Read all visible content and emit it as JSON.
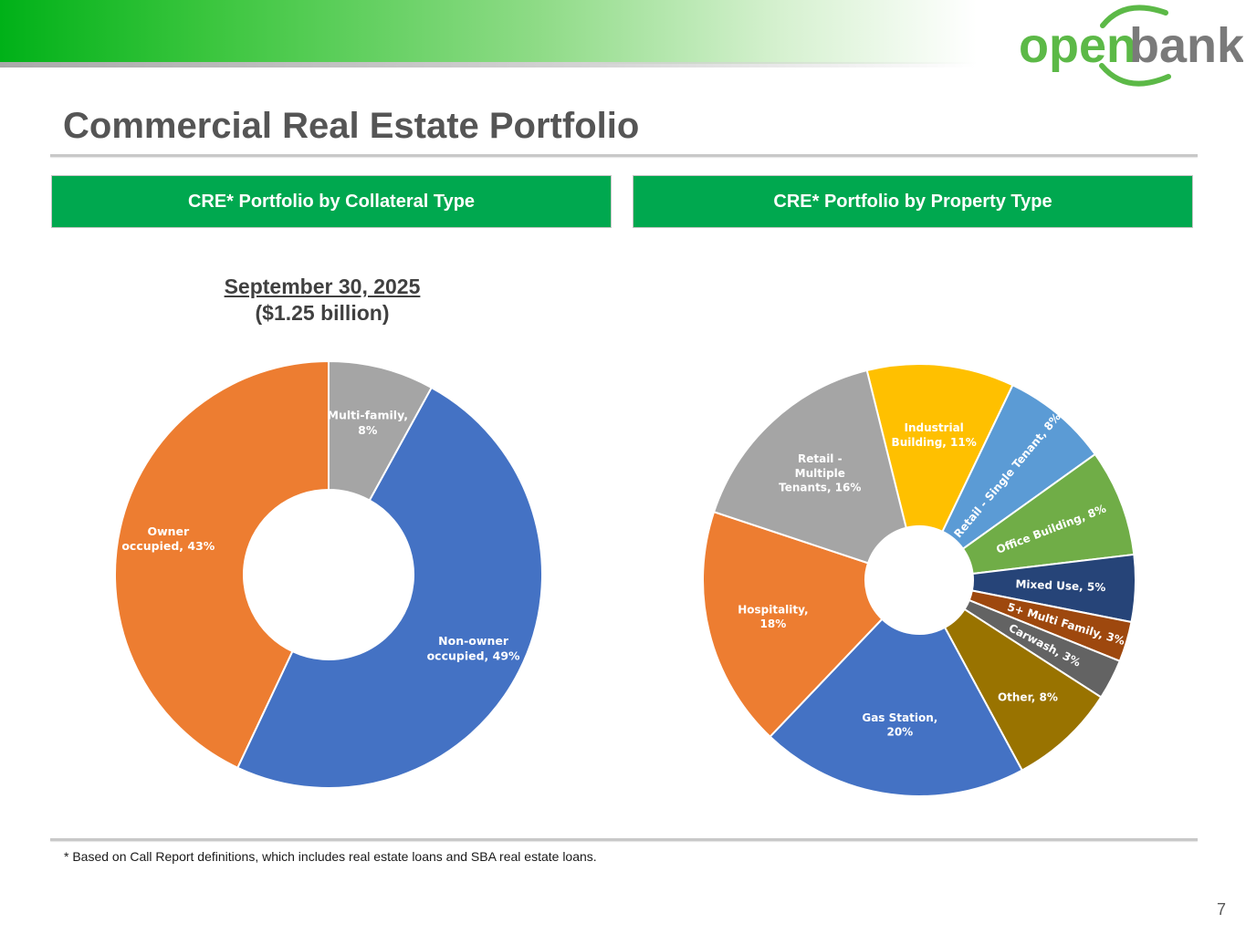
{
  "brand": {
    "logo_text_open": "open",
    "logo_text_bank": "bank",
    "logo_green": "#5cb947",
    "logo_gray": "#7a7a7a",
    "header_green": "#00a84f"
  },
  "page": {
    "title": "Commercial Real Estate Portfolio",
    "footnote": "* Based on Call Report definitions, which includes real estate loans and SBA real estate loans.",
    "page_number": "7"
  },
  "sections": {
    "left_header": "CRE* Portfolio by Collateral Type",
    "right_header": "CRE* Portfolio by Property Type",
    "as_of_date": "September 30, 2025",
    "as_of_amount": "($1.25 billion)"
  },
  "chart_data": [
    {
      "type": "pie",
      "variant": "donut",
      "title": "",
      "start_angle_deg": 90,
      "direction": "counterclockwise",
      "series": [
        {
          "label": "Owner occupied",
          "value": 43,
          "label_text": "Owner occupied, 43%",
          "label_lines": [
            "Owner",
            "occupied, 43%"
          ],
          "color": "#ed7d31",
          "label_color": "#ffffff"
        },
        {
          "label": "Non-owner occupied",
          "value": 49,
          "label_text": "Non-owner occupied, 49%",
          "label_lines": [
            "Non-owner",
            "occupied, 49%"
          ],
          "color": "#4472c4",
          "label_color": "#ffffff"
        },
        {
          "label": "Multi-family",
          "value": 8,
          "label_text": "Multi-family, 8%",
          "label_lines": [
            "Multi-family,",
            "8%"
          ],
          "color": "#a5a5a5",
          "label_color": "#ffffff"
        }
      ]
    },
    {
      "type": "pie",
      "variant": "donut",
      "title": "",
      "start_angle_deg": 104,
      "direction": "clockwise",
      "series": [
        {
          "label": "Industrial Building",
          "value": 11,
          "label_text": "Industrial Building, 11%",
          "label_lines": [
            "Industrial",
            "Building, 11%"
          ],
          "color": "#ffc000",
          "label_color": "#ffffff"
        },
        {
          "label": "Retail - Single Tenant",
          "value": 8,
          "label_text": "Retail - Single Tenant, 8%",
          "label_lines": [
            "Retail - Single Tenant, 8%"
          ],
          "color": "#5b9bd5",
          "label_color": "#ffffff",
          "rotated": true
        },
        {
          "label": "Office Building",
          "value": 8,
          "label_text": "Office Building, 8%",
          "label_lines": [
            "Office Building, 8%"
          ],
          "color": "#70ad47",
          "label_color": "#ffffff",
          "rotated": true
        },
        {
          "label": "Mixed Use",
          "value": 5,
          "label_text": "Mixed Use, 5%",
          "label_lines": [
            "Mixed Use, 5%"
          ],
          "color": "#264478",
          "label_color": "#ffffff",
          "rotated": true
        },
        {
          "label": "5+ Multi Family",
          "value": 3,
          "label_text": "5+ Multi Family, 3%",
          "label_lines": [
            "5+ Multi Family, 3%"
          ],
          "color": "#9e480e",
          "label_color": "#ffffff",
          "rotated": true
        },
        {
          "label": "Carwash",
          "value": 3,
          "label_text": "Carwash, 3%",
          "label_lines": [
            "Carwash, 3%"
          ],
          "color": "#636363",
          "label_color": "#ffffff",
          "rotated": true
        },
        {
          "label": "Other",
          "value": 8,
          "label_text": "Other, 8%",
          "label_lines": [
            "Other, 8%"
          ],
          "color": "#997300",
          "label_color": "#ffffff"
        },
        {
          "label": "Gas Station",
          "value": 20,
          "label_text": "Gas Station, 20%",
          "label_lines": [
            "Gas Station,",
            "20%"
          ],
          "color": "#4472c4",
          "label_color": "#ffffff"
        },
        {
          "label": "Hospitality",
          "value": 18,
          "label_text": "Hospitality, 18%",
          "label_lines": [
            "Hospitality,",
            "18%"
          ],
          "color": "#ed7d31",
          "label_color": "#ffffff"
        },
        {
          "label": "Retail - Multiple Tenants",
          "value": 16,
          "label_text": "Retail - Multiple Tenants, 16%",
          "label_lines": [
            "Retail -",
            "Multiple",
            "Tenants, 16%"
          ],
          "color": "#a5a5a5",
          "label_color": "#ffffff"
        }
      ]
    }
  ]
}
